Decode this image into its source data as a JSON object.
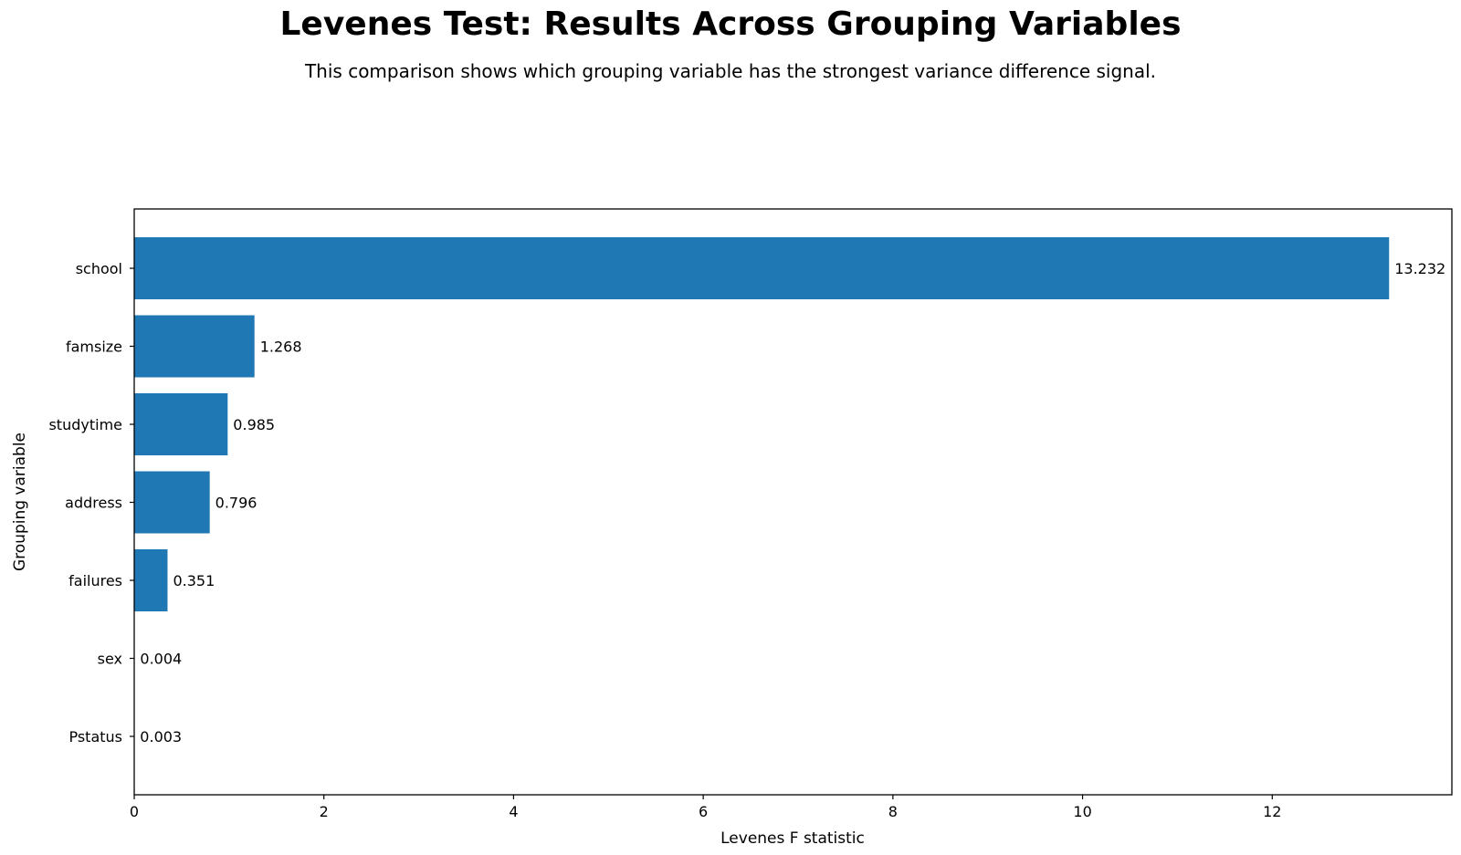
{
  "chart_data": {
    "type": "bar",
    "orientation": "horizontal",
    "title": "Levenes Test: Results Across Grouping Variables",
    "subtitle": "This comparison shows which grouping variable has the strongest variance difference signal.",
    "xlabel": "Levenes F statistic",
    "ylabel": "Grouping variable",
    "categories": [
      "school",
      "famsize",
      "studytime",
      "address",
      "failures",
      "sex",
      "Pstatus"
    ],
    "values": [
      13.232,
      1.268,
      0.985,
      0.796,
      0.351,
      0.004,
      0.003
    ],
    "value_labels": [
      "13.232",
      "1.268",
      "0.985",
      "0.796",
      "0.351",
      "0.004",
      "0.003"
    ],
    "xlim": [
      0,
      13.894
    ],
    "xticks": [
      0,
      2,
      4,
      6,
      8,
      10,
      12
    ],
    "bar_color": "#1f77b4",
    "grid": false,
    "legend": "none"
  }
}
